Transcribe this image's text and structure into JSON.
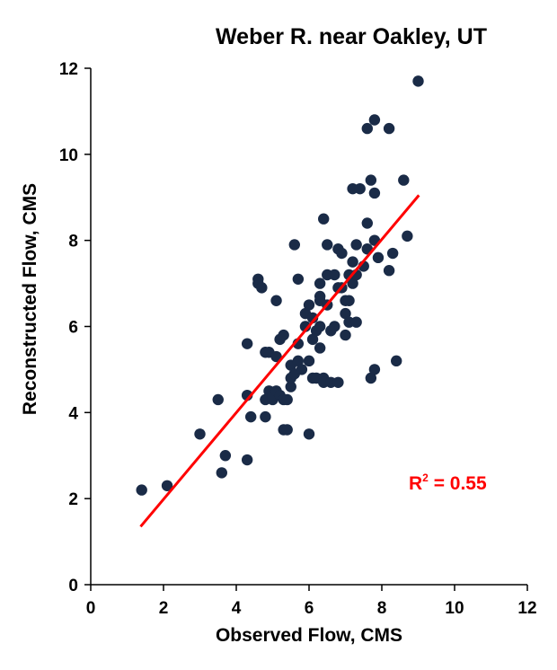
{
  "chart_data": {
    "type": "scatter",
    "title": "Weber R. near Oakley, UT",
    "xlabel": "Observed Flow, CMS",
    "ylabel": "Reconstructed Flow, CMS",
    "xlim": [
      0,
      12
    ],
    "ylim": [
      0,
      12
    ],
    "xticks": [
      "0",
      "2",
      "4",
      "6",
      "8",
      "10",
      "12"
    ],
    "yticks": [
      "0",
      "2",
      "4",
      "6",
      "8",
      "10",
      "12"
    ],
    "grid": false,
    "point_color": "#1a2b47",
    "points": [
      [
        1.4,
        2.2
      ],
      [
        2.1,
        2.3
      ],
      [
        3.0,
        3.5
      ],
      [
        3.5,
        4.3
      ],
      [
        3.6,
        2.6
      ],
      [
        3.7,
        3.0
      ],
      [
        4.3,
        2.9
      ],
      [
        4.3,
        4.4
      ],
      [
        4.4,
        3.9
      ],
      [
        4.3,
        5.6
      ],
      [
        4.6,
        7.1
      ],
      [
        4.6,
        7.0
      ],
      [
        4.7,
        6.9
      ],
      [
        4.8,
        5.4
      ],
      [
        4.8,
        4.3
      ],
      [
        4.8,
        3.9
      ],
      [
        4.9,
        5.4
      ],
      [
        4.9,
        4.5
      ],
      [
        5.0,
        4.3
      ],
      [
        5.0,
        4.4
      ],
      [
        5.1,
        5.3
      ],
      [
        5.1,
        4.5
      ],
      [
        5.1,
        6.6
      ],
      [
        5.2,
        5.7
      ],
      [
        5.2,
        4.4
      ],
      [
        5.3,
        5.8
      ],
      [
        5.3,
        4.3
      ],
      [
        5.3,
        3.6
      ],
      [
        5.4,
        3.6
      ],
      [
        5.4,
        4.3
      ],
      [
        5.5,
        5.1
      ],
      [
        5.5,
        4.6
      ],
      [
        5.5,
        4.8
      ],
      [
        5.6,
        7.9
      ],
      [
        5.6,
        4.9
      ],
      [
        5.7,
        7.1
      ],
      [
        5.7,
        5.6
      ],
      [
        5.7,
        5.2
      ],
      [
        5.8,
        5.0
      ],
      [
        5.9,
        6.3
      ],
      [
        5.9,
        6.0
      ],
      [
        6.0,
        6.5
      ],
      [
        6.0,
        3.5
      ],
      [
        6.0,
        5.2
      ],
      [
        6.1,
        5.7
      ],
      [
        6.1,
        4.8
      ],
      [
        6.1,
        6.2
      ],
      [
        6.2,
        4.8
      ],
      [
        6.2,
        5.9
      ],
      [
        6.3,
        6.6
      ],
      [
        6.3,
        6.7
      ],
      [
        6.3,
        7.0
      ],
      [
        6.3,
        6.0
      ],
      [
        6.3,
        5.5
      ],
      [
        6.4,
        4.8
      ],
      [
        6.4,
        4.7
      ],
      [
        6.4,
        8.5
      ],
      [
        6.5,
        7.9
      ],
      [
        6.5,
        7.2
      ],
      [
        6.5,
        6.5
      ],
      [
        6.6,
        4.7
      ],
      [
        6.6,
        5.9
      ],
      [
        6.7,
        7.2
      ],
      [
        6.7,
        6.0
      ],
      [
        6.8,
        4.7
      ],
      [
        6.8,
        6.9
      ],
      [
        6.8,
        7.8
      ],
      [
        6.9,
        7.7
      ],
      [
        6.9,
        6.9
      ],
      [
        7.0,
        6.6
      ],
      [
        7.0,
        6.3
      ],
      [
        7.0,
        5.8
      ],
      [
        7.1,
        7.2
      ],
      [
        7.1,
        6.6
      ],
      [
        7.1,
        6.1
      ],
      [
        7.2,
        7.5
      ],
      [
        7.2,
        7.0
      ],
      [
        7.2,
        9.2
      ],
      [
        7.3,
        7.9
      ],
      [
        7.3,
        7.2
      ],
      [
        7.3,
        6.1
      ],
      [
        7.4,
        9.2
      ],
      [
        7.5,
        7.4
      ],
      [
        7.6,
        10.6
      ],
      [
        7.6,
        8.4
      ],
      [
        7.6,
        7.8
      ],
      [
        7.7,
        4.8
      ],
      [
        7.7,
        9.4
      ],
      [
        7.8,
        10.8
      ],
      [
        7.8,
        8.0
      ],
      [
        7.8,
        9.1
      ],
      [
        7.8,
        5.0
      ],
      [
        7.9,
        7.6
      ],
      [
        8.2,
        7.3
      ],
      [
        8.2,
        10.6
      ],
      [
        8.3,
        7.7
      ],
      [
        8.4,
        5.2
      ],
      [
        8.6,
        9.4
      ],
      [
        8.7,
        8.1
      ],
      [
        9.0,
        11.7
      ]
    ],
    "trendline": {
      "x": [
        1.37,
        9.02
      ],
      "y": [
        1.35,
        9.05
      ],
      "color": "#ff0000"
    },
    "annotation": {
      "base": "R",
      "sup": "2",
      "rest": " = 0.55",
      "color": "#ff0000"
    }
  }
}
